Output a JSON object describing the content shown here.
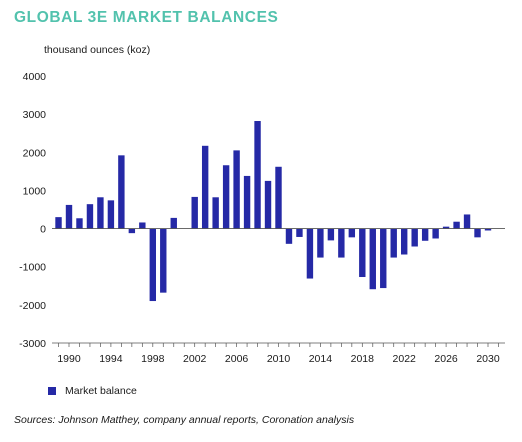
{
  "chart_data": {
    "type": "bar",
    "title": "GLOBAL 3E MARKET BALANCES",
    "ylabel": "thousand ounces (koz)",
    "xlabel": "",
    "ylim": [
      -3000,
      4000
    ],
    "yticks": [
      4000,
      3000,
      2000,
      1000,
      0,
      -1000,
      -2000,
      -3000
    ],
    "ytick_labels": [
      "4000",
      "3000",
      "2000",
      "1000",
      "0",
      "-1000",
      "-2000",
      "-3000"
    ],
    "xtick_labels": [
      "1990",
      "1994",
      "1998",
      "2002",
      "2006",
      "2010",
      "2014",
      "2018",
      "2022",
      "2026",
      "2030"
    ],
    "grid": false,
    "legend_position": "bottom-left",
    "color": "#2529a6",
    "categories": [
      "1989",
      "1990",
      "1991",
      "1992",
      "1993",
      "1994",
      "1995",
      "1996",
      "1997",
      "1998",
      "1999",
      "2000",
      "2001",
      "2002",
      "2003",
      "2004",
      "2005",
      "2006",
      "2007",
      "2008",
      "2009",
      "2010",
      "2011",
      "2012",
      "2013",
      "2014",
      "2015",
      "2016",
      "2017",
      "2018",
      "2019",
      "2020",
      "2021",
      "2022",
      "2023",
      "2024",
      "2025",
      "2026",
      "2027",
      "2028",
      "2029",
      "2030",
      "2031"
    ],
    "series": [
      {
        "name": "Market balance",
        "values": [
          300,
          620,
          270,
          640,
          820,
          740,
          1920,
          -120,
          160,
          -1900,
          -1680,
          280,
          0,
          830,
          2170,
          820,
          1660,
          2050,
          1380,
          2820,
          1250,
          1620,
          -400,
          -220,
          -1310,
          -760,
          -310,
          -760,
          -230,
          -1270,
          -1590,
          -1560,
          -760,
          -680,
          -470,
          -320,
          -260,
          50,
          180,
          370,
          -230,
          -50,
          0
        ]
      }
    ]
  },
  "legend": {
    "label": "Market balance"
  },
  "source": "Sources: Johnson Matthey, company annual reports, Coronation analysis"
}
